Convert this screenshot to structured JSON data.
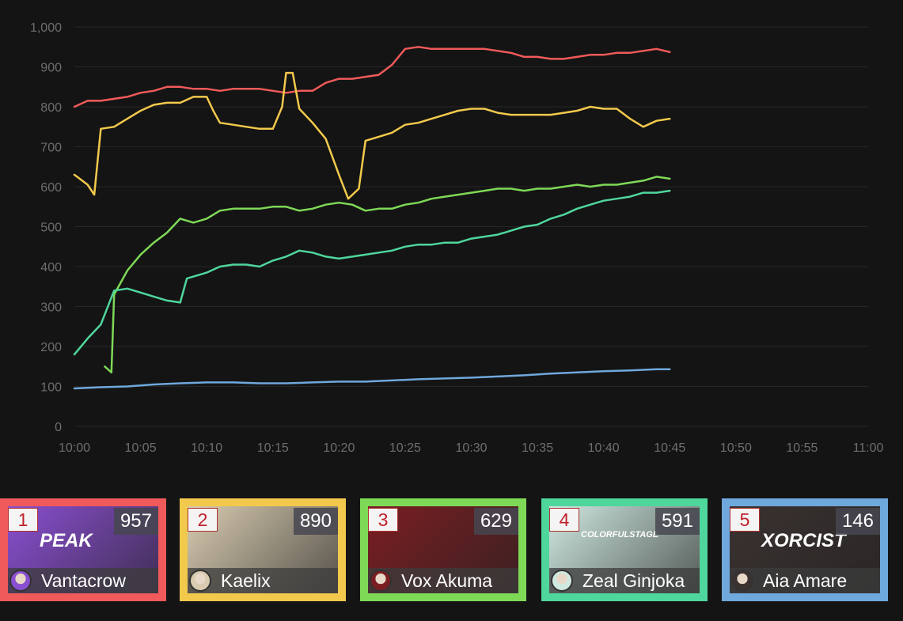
{
  "chart_data": {
    "type": "line",
    "y_ticks": [
      "0",
      "100",
      "200",
      "300",
      "400",
      "500",
      "600",
      "700",
      "800",
      "900",
      "1,000"
    ],
    "x_ticks": [
      "10:00",
      "10:05",
      "10:10",
      "10:15",
      "10:20",
      "10:25",
      "10:30",
      "10:35",
      "10:40",
      "10:45",
      "10:50",
      "10:55",
      "11:00"
    ],
    "ylim": [
      0,
      1000
    ],
    "xlim": [
      "10:00",
      "11:00"
    ],
    "grid": true,
    "series": [
      {
        "color": "#f05a5a",
        "points": [
          [
            "10:00",
            800
          ],
          [
            "10:01",
            815
          ],
          [
            "10:02",
            815
          ],
          [
            "10:03",
            820
          ],
          [
            "10:04",
            825
          ],
          [
            "10:05",
            835
          ],
          [
            "10:06",
            840
          ],
          [
            "10:07",
            850
          ],
          [
            "10:08",
            850
          ],
          [
            "10:09",
            845
          ],
          [
            "10:10",
            845
          ],
          [
            "10:11",
            840
          ],
          [
            "10:12",
            845
          ],
          [
            "10:13",
            845
          ],
          [
            "10:14",
            845
          ],
          [
            "10:15",
            840
          ],
          [
            "10:16",
            835
          ],
          [
            "10:17",
            840
          ],
          [
            "10:18",
            840
          ],
          [
            "10:19",
            860
          ],
          [
            "10:20",
            870
          ],
          [
            "10:21",
            870
          ],
          [
            "10:22",
            875
          ],
          [
            "10:23",
            880
          ],
          [
            "10:24",
            905
          ],
          [
            "10:25",
            945
          ],
          [
            "10:26",
            950
          ],
          [
            "10:27",
            945
          ],
          [
            "10:28",
            945
          ],
          [
            "10:29",
            945
          ],
          [
            "10:30",
            945
          ],
          [
            "10:31",
            945
          ],
          [
            "10:32",
            940
          ],
          [
            "10:33",
            935
          ],
          [
            "10:34",
            925
          ],
          [
            "10:35",
            925
          ],
          [
            "10:36",
            920
          ],
          [
            "10:37",
            920
          ],
          [
            "10:38",
            925
          ],
          [
            "10:39",
            930
          ],
          [
            "10:40",
            930
          ],
          [
            "10:41",
            935
          ],
          [
            "10:42",
            935
          ],
          [
            "10:43",
            940
          ],
          [
            "10:44",
            945
          ],
          [
            "10:45",
            937
          ]
        ]
      },
      {
        "color": "#f2c94c",
        "points": [
          [
            "10:00",
            630
          ],
          [
            "10:01",
            605
          ],
          [
            "10:01.5",
            580
          ],
          [
            "10:02",
            745
          ],
          [
            "10:03",
            750
          ],
          [
            "10:04",
            770
          ],
          [
            "10:05",
            790
          ],
          [
            "10:06",
            805
          ],
          [
            "10:07",
            810
          ],
          [
            "10:08",
            810
          ],
          [
            "10:09",
            825
          ],
          [
            "10:10",
            825
          ],
          [
            "10:10.5",
            790
          ],
          [
            "10:11",
            760
          ],
          [
            "10:12",
            755
          ],
          [
            "10:13",
            750
          ],
          [
            "10:14",
            745
          ],
          [
            "10:15",
            745
          ],
          [
            "10:15.7",
            800
          ],
          [
            "10:16",
            885
          ],
          [
            "10:16.5",
            885
          ],
          [
            "10:17",
            795
          ],
          [
            "10:18",
            760
          ],
          [
            "10:19",
            720
          ],
          [
            "10:20",
            630
          ],
          [
            "10:20.7",
            570
          ],
          [
            "10:21.5",
            595
          ],
          [
            "10:22",
            715
          ],
          [
            "10:23",
            725
          ],
          [
            "10:24",
            735
          ],
          [
            "10:25",
            755
          ],
          [
            "10:26",
            760
          ],
          [
            "10:27",
            770
          ],
          [
            "10:28",
            780
          ],
          [
            "10:29",
            790
          ],
          [
            "10:30",
            795
          ],
          [
            "10:31",
            795
          ],
          [
            "10:32",
            785
          ],
          [
            "10:33",
            780
          ],
          [
            "10:34",
            780
          ],
          [
            "10:35",
            780
          ],
          [
            "10:36",
            780
          ],
          [
            "10:37",
            785
          ],
          [
            "10:38",
            790
          ],
          [
            "10:39",
            800
          ],
          [
            "10:40",
            795
          ],
          [
            "10:41",
            795
          ],
          [
            "10:42",
            770
          ],
          [
            "10:43",
            750
          ],
          [
            "10:44",
            765
          ],
          [
            "10:45",
            770
          ]
        ]
      },
      {
        "color": "#7ed957",
        "points": [
          [
            "10:02.3",
            150
          ],
          [
            "10:02.8",
            135
          ],
          [
            "10:03",
            330
          ],
          [
            "10:04",
            390
          ],
          [
            "10:05",
            430
          ],
          [
            "10:06",
            460
          ],
          [
            "10:07",
            485
          ],
          [
            "10:08",
            520
          ],
          [
            "10:09",
            510
          ],
          [
            "10:10",
            520
          ],
          [
            "10:11",
            540
          ],
          [
            "10:12",
            545
          ],
          [
            "10:13",
            545
          ],
          [
            "10:14",
            545
          ],
          [
            "10:15",
            550
          ],
          [
            "10:16",
            550
          ],
          [
            "10:17",
            540
          ],
          [
            "10:18",
            545
          ],
          [
            "10:19",
            555
          ],
          [
            "10:20",
            560
          ],
          [
            "10:21",
            555
          ],
          [
            "10:22",
            540
          ],
          [
            "10:23",
            545
          ],
          [
            "10:24",
            545
          ],
          [
            "10:25",
            555
          ],
          [
            "10:26",
            560
          ],
          [
            "10:27",
            570
          ],
          [
            "10:28",
            575
          ],
          [
            "10:29",
            580
          ],
          [
            "10:30",
            585
          ],
          [
            "10:31",
            590
          ],
          [
            "10:32",
            595
          ],
          [
            "10:33",
            595
          ],
          [
            "10:34",
            590
          ],
          [
            "10:35",
            595
          ],
          [
            "10:36",
            595
          ],
          [
            "10:37",
            600
          ],
          [
            "10:38",
            605
          ],
          [
            "10:39",
            600
          ],
          [
            "10:40",
            605
          ],
          [
            "10:41",
            605
          ],
          [
            "10:42",
            610
          ],
          [
            "10:43",
            615
          ],
          [
            "10:44",
            625
          ],
          [
            "10:45",
            620
          ]
        ]
      },
      {
        "color": "#4fd69c",
        "points": [
          [
            "10:00",
            180
          ],
          [
            "10:01",
            220
          ],
          [
            "10:02",
            255
          ],
          [
            "10:03",
            340
          ],
          [
            "10:04",
            345
          ],
          [
            "10:05",
            335
          ],
          [
            "10:06",
            325
          ],
          [
            "10:07",
            315
          ],
          [
            "10:08",
            310
          ],
          [
            "10:08.5",
            370
          ],
          [
            "10:09",
            375
          ],
          [
            "10:10",
            385
          ],
          [
            "10:11",
            400
          ],
          [
            "10:12",
            405
          ],
          [
            "10:13",
            405
          ],
          [
            "10:14",
            400
          ],
          [
            "10:15",
            415
          ],
          [
            "10:16",
            425
          ],
          [
            "10:17",
            440
          ],
          [
            "10:18",
            435
          ],
          [
            "10:19",
            425
          ],
          [
            "10:20",
            420
          ],
          [
            "10:21",
            425
          ],
          [
            "10:22",
            430
          ],
          [
            "10:23",
            435
          ],
          [
            "10:24",
            440
          ],
          [
            "10:25",
            450
          ],
          [
            "10:26",
            455
          ],
          [
            "10:27",
            455
          ],
          [
            "10:28",
            460
          ],
          [
            "10:29",
            460
          ],
          [
            "10:30",
            470
          ],
          [
            "10:31",
            475
          ],
          [
            "10:32",
            480
          ],
          [
            "10:33",
            490
          ],
          [
            "10:34",
            500
          ],
          [
            "10:35",
            505
          ],
          [
            "10:36",
            520
          ],
          [
            "10:37",
            530
          ],
          [
            "10:38",
            545
          ],
          [
            "10:39",
            555
          ],
          [
            "10:40",
            565
          ],
          [
            "10:41",
            570
          ],
          [
            "10:42",
            575
          ],
          [
            "10:43",
            585
          ],
          [
            "10:44",
            585
          ],
          [
            "10:45",
            590
          ]
        ]
      },
      {
        "color": "#6fa8dc",
        "points": [
          [
            "10:00",
            95
          ],
          [
            "10:02",
            98
          ],
          [
            "10:04",
            100
          ],
          [
            "10:06",
            105
          ],
          [
            "10:08",
            108
          ],
          [
            "10:10",
            110
          ],
          [
            "10:12",
            110
          ],
          [
            "10:14",
            108
          ],
          [
            "10:16",
            108
          ],
          [
            "10:18",
            110
          ],
          [
            "10:20",
            112
          ],
          [
            "10:22",
            112
          ],
          [
            "10:24",
            115
          ],
          [
            "10:26",
            118
          ],
          [
            "10:28",
            120
          ],
          [
            "10:30",
            122
          ],
          [
            "10:32",
            125
          ],
          [
            "10:34",
            128
          ],
          [
            "10:36",
            132
          ],
          [
            "10:38",
            135
          ],
          [
            "10:40",
            138
          ],
          [
            "10:42",
            140
          ],
          [
            "10:44",
            143
          ],
          [
            "10:45",
            143
          ]
        ]
      }
    ]
  },
  "cards": [
    {
      "rank": "1",
      "score": "957",
      "name": "Vantacrow",
      "color": "#f05a5a",
      "thumb_bg": "#8a4fd0",
      "thumb_text": "PEAK"
    },
    {
      "rank": "2",
      "score": "890",
      "name": "Kaelix",
      "color": "#f2c94c",
      "thumb_bg": "#d8cbb0",
      "thumb_text": ""
    },
    {
      "rank": "3",
      "score": "629",
      "name": "Vox Akuma",
      "color": "#7ed957",
      "thumb_bg": "#7a1e22",
      "thumb_text": ""
    },
    {
      "rank": "4",
      "score": "591",
      "name": "Zeal Ginjoka",
      "color": "#4fd69c",
      "thumb_bg": "#cfe8e0",
      "thumb_text": "COLORFULSTAGE"
    },
    {
      "rank": "5",
      "score": "146",
      "name": "Aia Amare",
      "color": "#6fa8dc",
      "thumb_bg": "#3a3230",
      "thumb_text": "XORCIST"
    }
  ]
}
